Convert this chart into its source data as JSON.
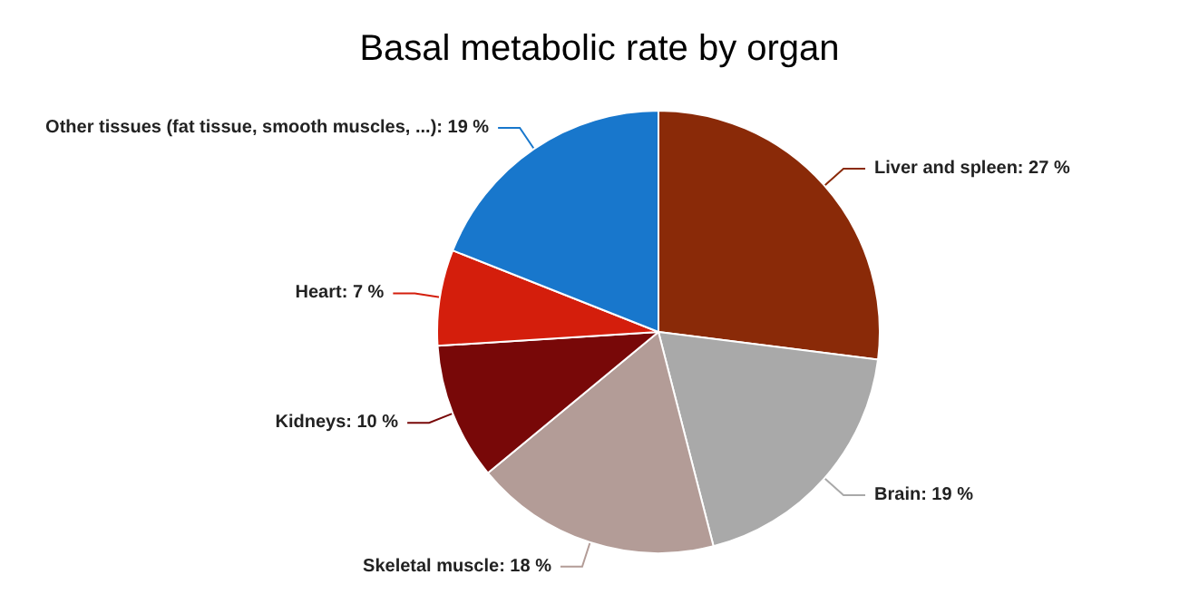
{
  "chart_data": {
    "type": "pie",
    "title": "Basal metabolic rate by organ",
    "categories": [
      "Liver and spleen",
      "Brain",
      "Skeletal muscle",
      "Kidneys",
      "Heart",
      "Other tissues (fat tissue, smooth muscles, ...)"
    ],
    "values": [
      27,
      19,
      18,
      10,
      7,
      19
    ],
    "value_labels": [
      "27 %",
      "19 %",
      "18 %",
      "10 %",
      "7 %",
      "19 %"
    ],
    "colors": [
      "#8a2a08",
      "#a9a9a9",
      "#b39c97",
      "#780808",
      "#d41e0c",
      "#1877cc"
    ],
    "legend": false
  }
}
